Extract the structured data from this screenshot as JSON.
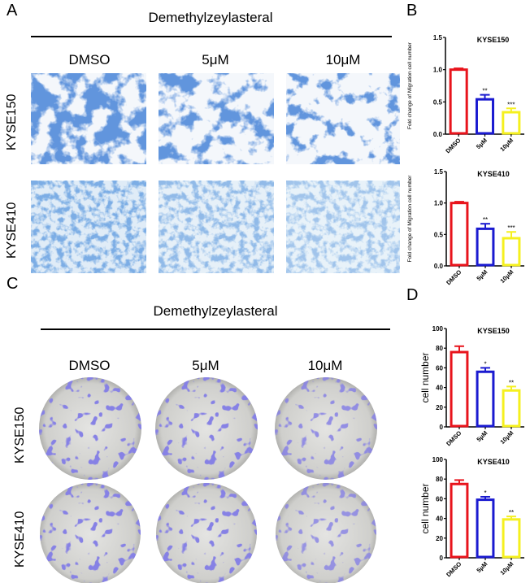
{
  "panels": {
    "A": {
      "label": "A",
      "title": "Demethylzeylasteral",
      "columns": [
        "DMSO",
        "5μM",
        "10μM"
      ],
      "rows": [
        "KYSE150",
        "KYSE410"
      ]
    },
    "B": {
      "label": "B"
    },
    "C": {
      "label": "C",
      "title": "Demethylzeylasteral",
      "columns": [
        "DMSO",
        "5μM",
        "10μM"
      ],
      "rows": [
        "KYSE150",
        "KYSE410"
      ]
    },
    "D": {
      "label": "D"
    }
  },
  "colors": {
    "DMSO": "#e8141c",
    "5μM": "#1a1ad0",
    "10μM": "#f5f01e"
  },
  "chart_data": [
    {
      "type": "bar",
      "panel": "B",
      "title": "KYSE150",
      "categories": [
        "DMSO",
        "5μM",
        "10μM"
      ],
      "values": [
        1.0,
        0.54,
        0.34
      ],
      "errors": [
        0.02,
        0.07,
        0.06
      ],
      "significance": [
        "",
        "**",
        "***"
      ],
      "ylabel": "Fold change of Migration cell number",
      "ylim": [
        0,
        1.5
      ],
      "yticks": [
        "0.0",
        "0.5",
        "1.0",
        "1.5"
      ],
      "tick_values": [
        0,
        0.5,
        1.0,
        1.5
      ]
    },
    {
      "type": "bar",
      "panel": "B",
      "title": "KYSE410",
      "categories": [
        "DMSO",
        "5μM",
        "10μM"
      ],
      "values": [
        1.0,
        0.59,
        0.44
      ],
      "errors": [
        0.02,
        0.08,
        0.1
      ],
      "significance": [
        "",
        "**",
        "***"
      ],
      "ylabel": "Fold change of Migration cell number",
      "ylim": [
        0,
        1.5
      ],
      "yticks": [
        "0.0",
        "0.5",
        "1.0",
        "1.5"
      ],
      "tick_values": [
        0,
        0.5,
        1.0,
        1.5
      ]
    },
    {
      "type": "bar",
      "panel": "D",
      "title": "KYSE150",
      "categories": [
        "DMSO",
        "5μM",
        "10μM"
      ],
      "values": [
        76,
        56,
        37
      ],
      "errors": [
        6,
        4,
        4
      ],
      "significance": [
        "",
        "*",
        "**"
      ],
      "ylabel": "cell number",
      "ylim": [
        0,
        100
      ],
      "yticks": [
        "0",
        "20",
        "40",
        "60",
        "80",
        "100"
      ],
      "tick_values": [
        0,
        20,
        40,
        60,
        80,
        100
      ]
    },
    {
      "type": "bar",
      "panel": "D",
      "title": "KYSE410",
      "categories": [
        "DMSO",
        "5μM",
        "10μM"
      ],
      "values": [
        75,
        59,
        39
      ],
      "errors": [
        4,
        3,
        3
      ],
      "significance": [
        "",
        "*",
        "**"
      ],
      "ylabel": "cell number",
      "ylim": [
        0,
        100
      ],
      "yticks": [
        "0",
        "20",
        "40",
        "60",
        "80",
        "100"
      ],
      "tick_values": [
        0,
        20,
        40,
        60,
        80,
        100
      ]
    }
  ]
}
